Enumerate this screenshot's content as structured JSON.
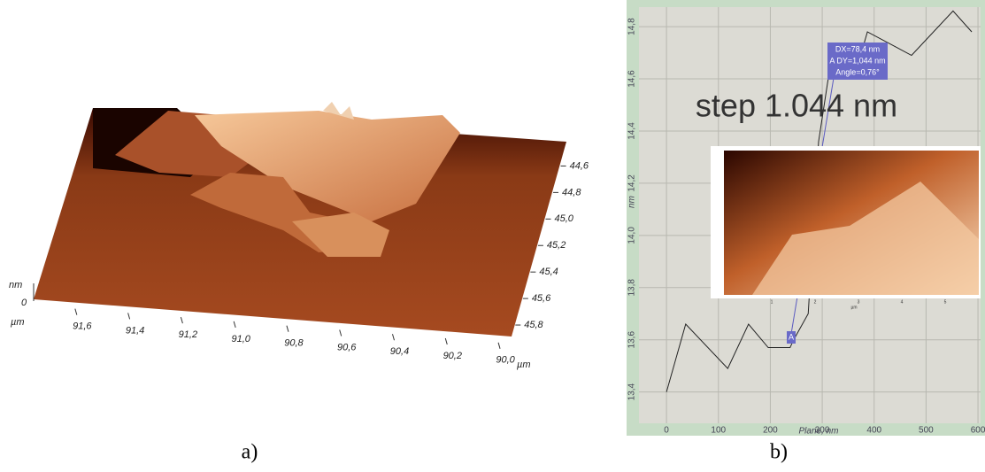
{
  "chart_data": [
    {
      "type": "surface3d",
      "z_label": "nm",
      "z_tick": "0",
      "x_unit": "µm",
      "y_unit": "µm",
      "xlim": [
        91.75,
        89.95
      ],
      "xticks": [
        {
          "value": 91.6,
          "label": "91,6"
        },
        {
          "value": 91.4,
          "label": "91,4"
        },
        {
          "value": 91.2,
          "label": "91,2"
        },
        {
          "value": 91.0,
          "label": "91,0"
        },
        {
          "value": 90.8,
          "label": "90,8"
        },
        {
          "value": 90.6,
          "label": "90,6"
        },
        {
          "value": 90.4,
          "label": "90,4"
        },
        {
          "value": 90.2,
          "label": "90,2"
        },
        {
          "value": 90.0,
          "label": "90,0"
        }
      ],
      "ylim": [
        44.45,
        45.9
      ],
      "yticks": [
        {
          "value": 44.6,
          "label": "44,6"
        },
        {
          "value": 44.8,
          "label": "44,8"
        },
        {
          "value": 45.0,
          "label": "45,0"
        },
        {
          "value": 45.2,
          "label": "45,2"
        },
        {
          "value": 45.4,
          "label": "45,4"
        },
        {
          "value": 45.6,
          "label": "45,6"
        },
        {
          "value": 45.8,
          "label": "45,8"
        }
      ]
    },
    {
      "type": "line",
      "x_label": "Plane, nm",
      "y_label": "nm",
      "color": "#222222",
      "grid": true,
      "x": [
        0,
        37,
        118,
        158,
        196,
        238,
        245,
        273,
        293,
        313,
        361,
        387,
        472,
        552,
        588
      ],
      "values": [
        13.4,
        13.66,
        13.49,
        13.66,
        13.57,
        13.57,
        13.6,
        13.7,
        14.36,
        14.62,
        14.6,
        14.78,
        14.69,
        14.86,
        14.78
      ],
      "xlim": [
        -53,
        605
      ],
      "xticks": [
        0,
        100,
        200,
        300,
        400,
        500,
        600
      ],
      "ylim": [
        13.28,
        14.875
      ],
      "yticks": [
        {
          "value": 13.4,
          "label": "13,4"
        },
        {
          "value": 13.6,
          "label": "13,6"
        },
        {
          "value": 13.8,
          "label": "13,8"
        },
        {
          "value": 14.0,
          "label": "14,0"
        },
        {
          "value": 14.2,
          "label": "14,2"
        },
        {
          "value": 14.4,
          "label": "14,4"
        },
        {
          "value": 14.6,
          "label": "14,6"
        },
        {
          "value": 14.8,
          "label": "14,8"
        }
      ],
      "annotation": [
        "DX=78,4 nm",
        "A DY=1,044 nm",
        "Angle=0,76°"
      ],
      "marker_label": "A",
      "step_text": "step 1.044 nm",
      "inset": {
        "x_label": "µm",
        "xticks": [
          1,
          2,
          3,
          4,
          5
        ]
      }
    }
  ],
  "captions": [
    "a)",
    "b)"
  ]
}
